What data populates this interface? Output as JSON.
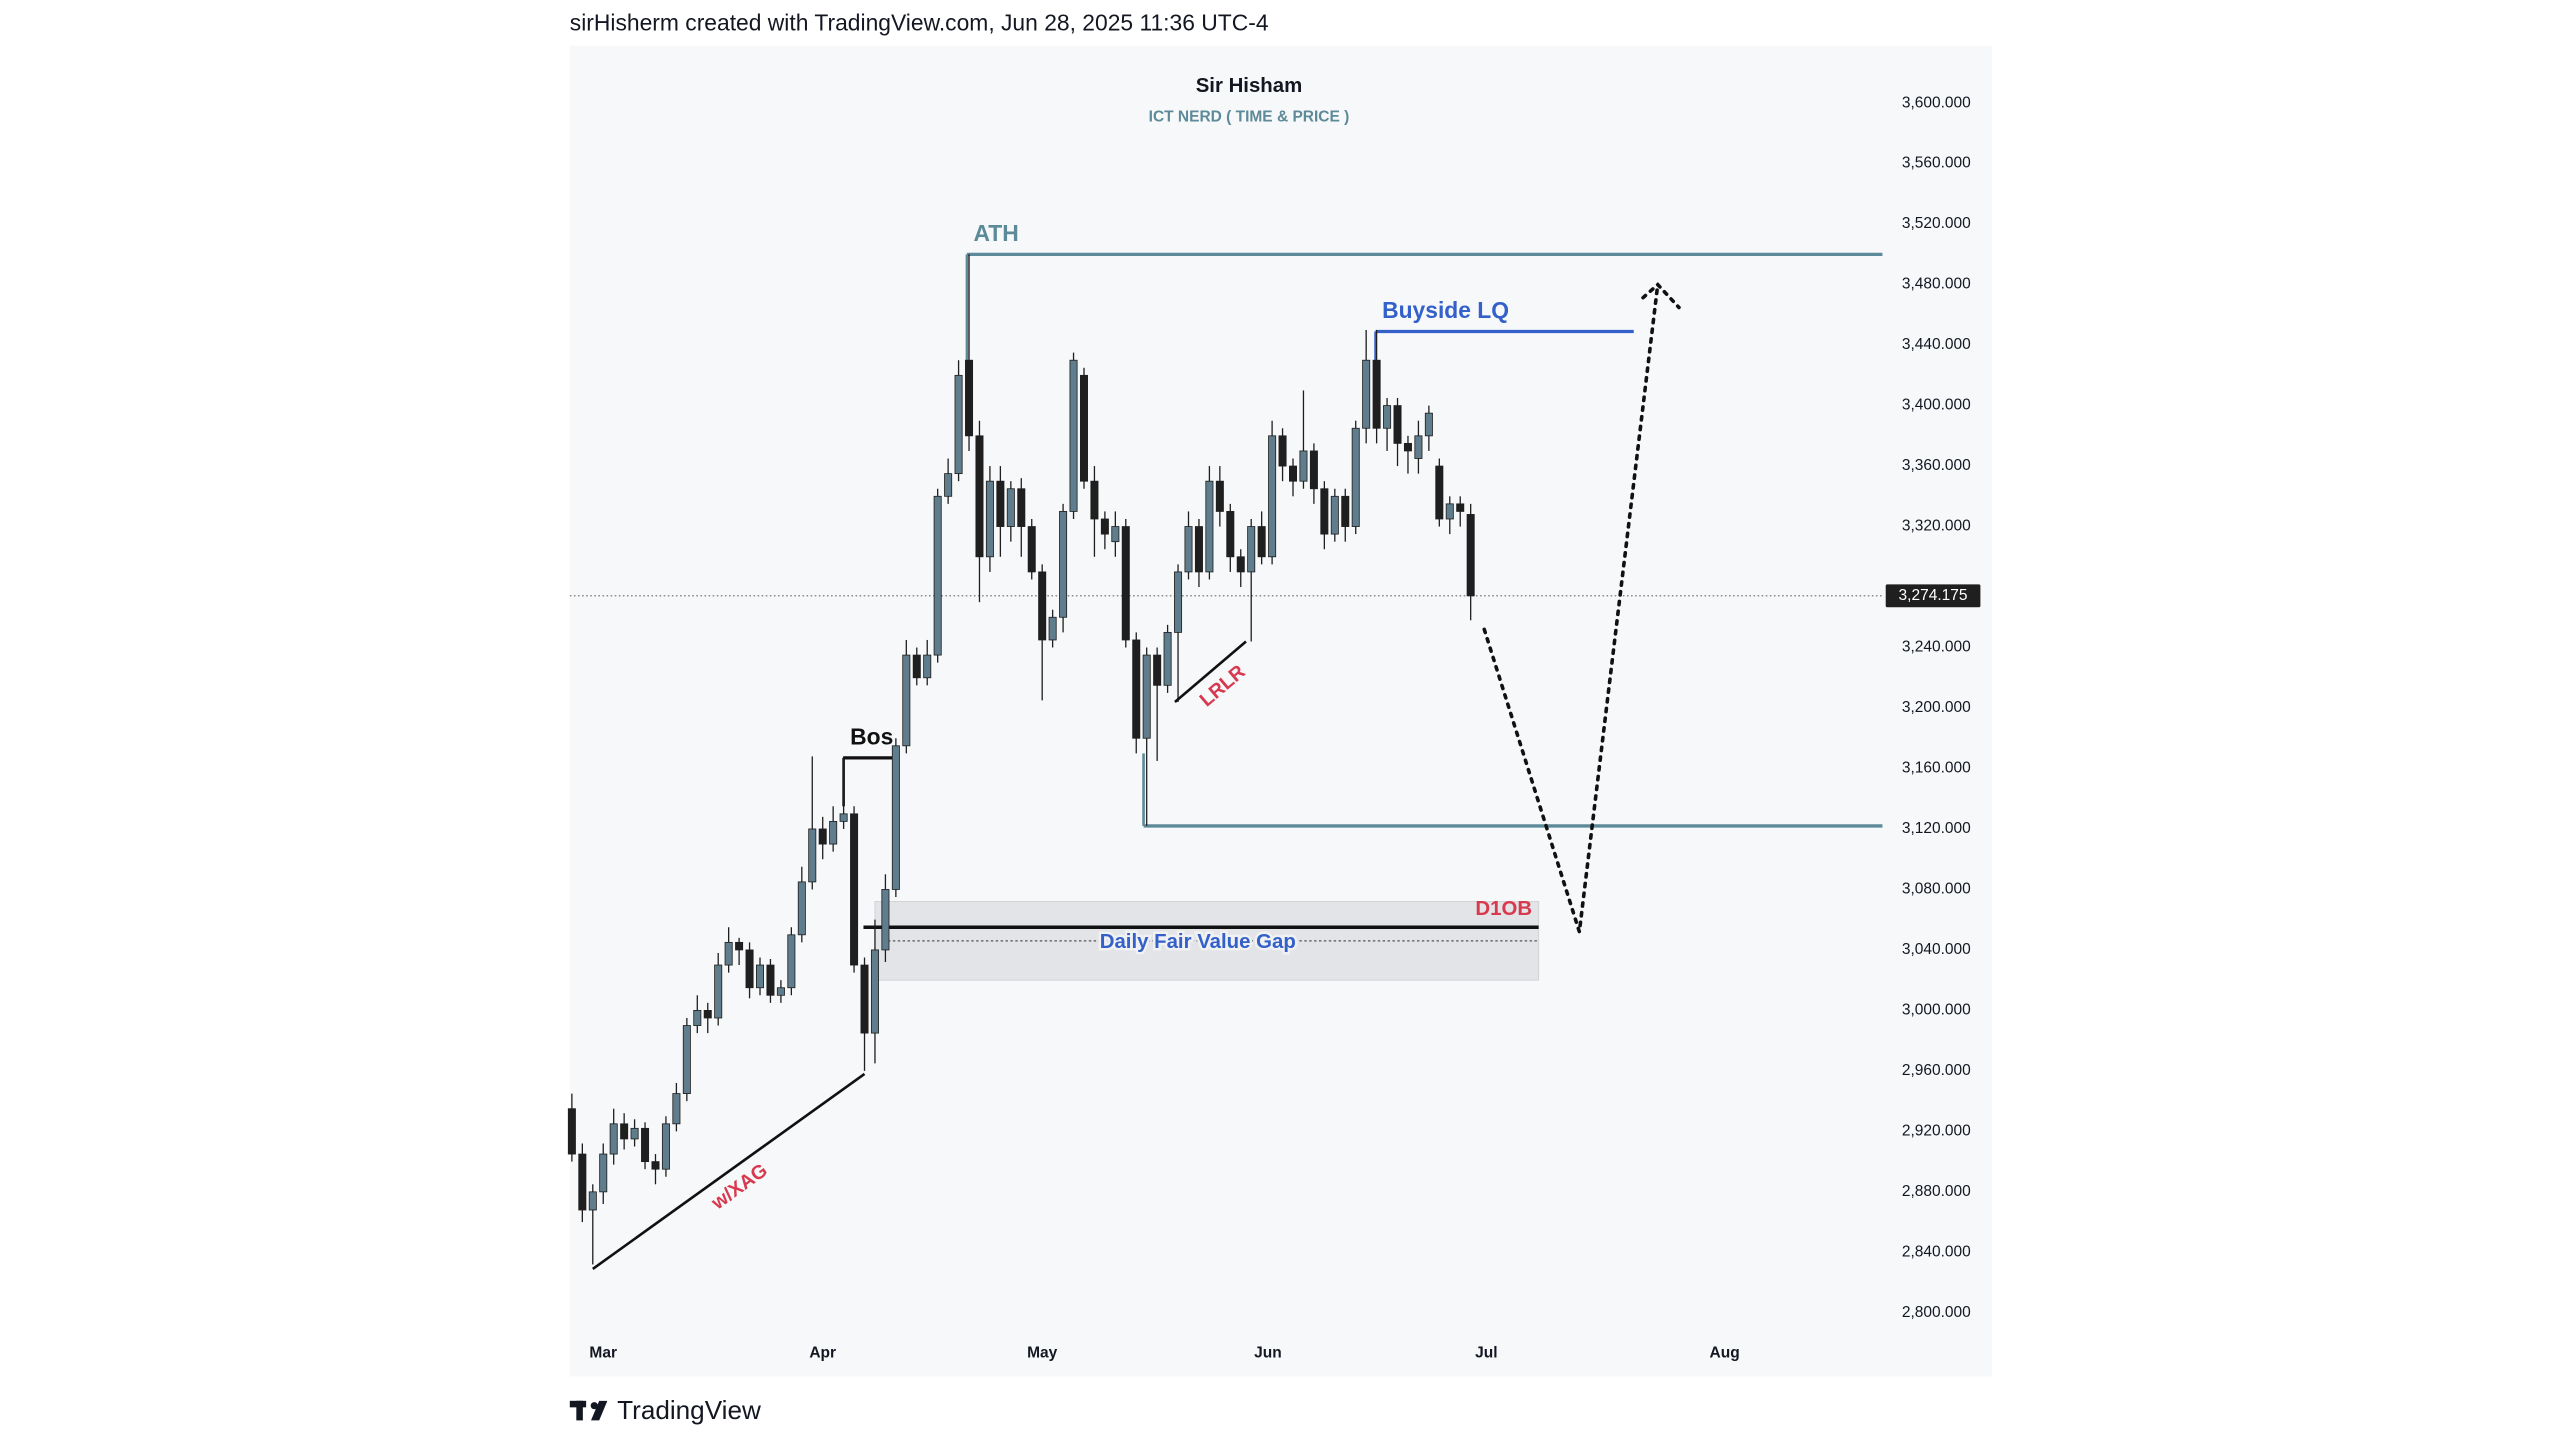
{
  "header": {
    "caption": "sirHisherm created with TradingView.com, Jun 28, 2025 11:36 UTC-4"
  },
  "footer": {
    "brand": "TradingView"
  },
  "chart_data": {
    "type": "candlestick",
    "title": "Sir Hisham",
    "subtitle": "ICT NERD ( TIME & PRICE )",
    "up_color": "#5f7d8c",
    "down_color": "#1f1f1f",
    "xlim": [
      -0.2,
      125.4
    ],
    "ylim": [
      2758,
      3638
    ],
    "xticks": [
      {
        "value": 3,
        "label": "Mar"
      },
      {
        "value": 24,
        "label": "Apr"
      },
      {
        "value": 45,
        "label": "May"
      },
      {
        "value": 66.6,
        "label": "Jun"
      },
      {
        "value": 87.5,
        "label": "Jul"
      },
      {
        "value": 110.3,
        "label": "Aug"
      }
    ],
    "yticks": [
      {
        "value": 2800,
        "label": "2,800.000"
      },
      {
        "value": 2840,
        "label": "2,840.000"
      },
      {
        "value": 2880,
        "label": "2,880.000"
      },
      {
        "value": 2920,
        "label": "2,920.000"
      },
      {
        "value": 2960,
        "label": "2,960.000"
      },
      {
        "value": 3000,
        "label": "3,000.000"
      },
      {
        "value": 3040,
        "label": "3,040.000"
      },
      {
        "value": 3080,
        "label": "3,080.000"
      },
      {
        "value": 3120,
        "label": "3,120.000"
      },
      {
        "value": 3160,
        "label": "3,160.000"
      },
      {
        "value": 3200,
        "label": "3,200.000"
      },
      {
        "value": 3240,
        "label": "3,240.000"
      },
      {
        "value": 3320,
        "label": "3,320.000"
      },
      {
        "value": 3360,
        "label": "3,360.000"
      },
      {
        "value": 3400,
        "label": "3,400.000"
      },
      {
        "value": 3440,
        "label": "3,440.000"
      },
      {
        "value": 3480,
        "label": "3,480.000"
      },
      {
        "value": 3520,
        "label": "3,520.000"
      },
      {
        "value": 3560,
        "label": "3,560.000"
      },
      {
        "value": 3600,
        "label": "3,600.000"
      }
    ],
    "current_price": {
      "value": 3274.175,
      "label": "3,274.175"
    },
    "open": [
      2935,
      2905,
      2868,
      2880,
      2905,
      2925,
      2915,
      2922,
      2900,
      2895,
      2925,
      2945,
      2990,
      3000,
      2995,
      3030,
      3045,
      3040,
      3015,
      3030,
      3010,
      3015,
      3050,
      3085,
      3120,
      3110,
      3125,
      3130,
      3030,
      2985,
      3040,
      3080,
      3175,
      3235,
      3220,
      3235,
      3340,
      3355,
      3430,
      3380,
      3300,
      3350,
      3320,
      3345,
      3320,
      3290,
      3245,
      3260,
      3330,
      3420,
      3350,
      3325,
      3310,
      3320,
      3245,
      3180,
      3235,
      3215,
      3250,
      3290,
      3320,
      3290,
      3350,
      3330,
      3300,
      3290,
      3320,
      3300,
      3380,
      3360,
      3350,
      3370,
      3345,
      3315,
      3340,
      3320,
      3385,
      3430,
      3385,
      3400,
      3375,
      3365,
      3380,
      3360,
      3325,
      3335,
      3328
    ],
    "high": [
      2945,
      2912,
      2885,
      2912,
      2935,
      2932,
      2928,
      2926,
      2905,
      2930,
      2952,
      2995,
      3010,
      3005,
      3038,
      3055,
      3048,
      3045,
      3035,
      3034,
      3020,
      3055,
      3095,
      3168,
      3128,
      3135,
      3168,
      3135,
      3035,
      3060,
      3090,
      3180,
      3245,
      3240,
      3245,
      3345,
      3365,
      3430,
      3500,
      3390,
      3360,
      3360,
      3350,
      3352,
      3325,
      3295,
      3265,
      3335,
      3435,
      3425,
      3360,
      3330,
      3330,
      3325,
      3250,
      3240,
      3240,
      3255,
      3295,
      3330,
      3325,
      3360,
      3360,
      3335,
      3305,
      3325,
      3330,
      3390,
      3385,
      3365,
      3410,
      3375,
      3350,
      3345,
      3345,
      3390,
      3450,
      3450,
      3405,
      3405,
      3380,
      3390,
      3400,
      3365,
      3340,
      3340,
      3335
    ],
    "low": [
      2900,
      2860,
      2832,
      2872,
      2898,
      2908,
      2910,
      2895,
      2885,
      2890,
      2920,
      2940,
      2985,
      2985,
      2990,
      3025,
      3030,
      3008,
      3010,
      3005,
      3005,
      3010,
      3045,
      3080,
      3100,
      3105,
      3120,
      3025,
      2960,
      2965,
      3032,
      3075,
      3170,
      3215,
      3215,
      3230,
      3335,
      3350,
      3370,
      3270,
      3290,
      3300,
      3310,
      3300,
      3285,
      3205,
      3240,
      3250,
      3325,
      3345,
      3300,
      3305,
      3300,
      3240,
      3170,
      3122,
      3165,
      3210,
      3204,
      3285,
      3280,
      3285,
      3320,
      3290,
      3280,
      3244,
      3295,
      3295,
      3350,
      3340,
      3345,
      3335,
      3305,
      3310,
      3310,
      3315,
      3375,
      3375,
      3370,
      3360,
      3355,
      3355,
      3370,
      3320,
      3315,
      3320,
      3258
    ],
    "close": [
      2905,
      2868,
      2880,
      2905,
      2925,
      2915,
      2922,
      2900,
      2895,
      2925,
      2945,
      2990,
      3000,
      2995,
      3030,
      3045,
      3040,
      3015,
      3030,
      3010,
      3015,
      3050,
      3085,
      3120,
      3110,
      3125,
      3130,
      3030,
      2985,
      3040,
      3080,
      3175,
      3235,
      3220,
      3235,
      3340,
      3355,
      3420,
      3380,
      3300,
      3350,
      3320,
      3345,
      3320,
      3290,
      3245,
      3260,
      3330,
      3430,
      3350,
      3325,
      3315,
      3320,
      3245,
      3180,
      3235,
      3215,
      3250,
      3290,
      3320,
      3290,
      3350,
      3330,
      3300,
      3290,
      3320,
      3300,
      3380,
      3360,
      3350,
      3370,
      3345,
      3315,
      3340,
      3320,
      3385,
      3430,
      3385,
      3400,
      3375,
      3370,
      3380,
      3395,
      3325,
      3335,
      3330,
      3274.175
    ],
    "levels": [
      {
        "label": "ATH",
        "value": 3500,
        "from": 37.8,
        "to": 125.4,
        "drop": 3420,
        "color": "#5d8a99"
      },
      {
        "label": "Buyside LQ",
        "value": 3449,
        "from": 76.9,
        "to": 101.6,
        "drop": 3430,
        "color": "#3360c9"
      },
      {
        "value": 3122,
        "from": 54.7,
        "to": 125.4,
        "drop": 3170,
        "color": "#5d8a99"
      },
      {
        "label": "Bos",
        "value": 3167,
        "from": 26,
        "to": 30.8,
        "drop": 3135,
        "color": "#111111"
      }
    ],
    "zone": {
      "label": "D1OB",
      "top": 3072,
      "bottom": 3020,
      "from": 29,
      "to": 92.5,
      "color": "#d8394f"
    },
    "fvg": {
      "label": "Daily Fair Value Gap",
      "value": 3055,
      "mid": 3046,
      "from": 27.9,
      "to": 92.5,
      "color": "#3360c9"
    },
    "trendlines": [
      {
        "label": "w/XAG",
        "x": [
          2,
          28
        ],
        "y": [
          2829,
          2958
        ]
      },
      {
        "label": "LRLR",
        "x": [
          57.7,
          64.5
        ],
        "y": [
          3204,
          3244
        ]
      }
    ],
    "projection": {
      "x": [
        87.3,
        96.4,
        103.9
      ],
      "y": [
        3252,
        3052,
        3480
      ]
    }
  }
}
